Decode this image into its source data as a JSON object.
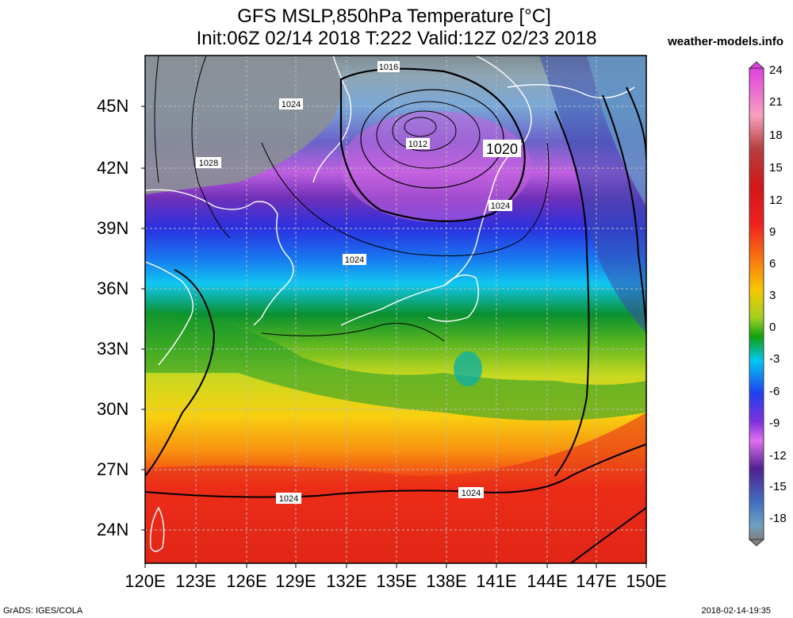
{
  "header": {
    "title_line1": "GFS MSLP,850hPa Temperature [°C]",
    "title_line2": "Init:06Z 02/14 2018 T:222 Valid:12Z 02/23 2018",
    "source": "weather-models.info"
  },
  "map": {
    "lat_labels": [
      "45N",
      "42N",
      "39N",
      "36N",
      "33N",
      "30N",
      "27N",
      "24N"
    ],
    "lon_labels": [
      "120E",
      "123E",
      "126E",
      "129E",
      "132E",
      "135E",
      "138E",
      "141E",
      "144E",
      "147E",
      "150E"
    ],
    "isobar_labels": [
      {
        "text": "1016",
        "key": "a"
      },
      {
        "text": "1024",
        "key": "b"
      },
      {
        "text": "1012",
        "key": "c"
      },
      {
        "text": "1020",
        "key": "d"
      },
      {
        "text": "1028",
        "key": "e"
      },
      {
        "text": "1024",
        "key": "f"
      },
      {
        "text": "1024",
        "key": "g"
      },
      {
        "text": "1024",
        "key": "h"
      },
      {
        "text": "1024",
        "key": "i"
      }
    ]
  },
  "colorbar": {
    "labels": [
      "24",
      "21",
      "18",
      "15",
      "12",
      "9",
      "6",
      "3",
      "0",
      "-3",
      "-6",
      "-9",
      "-12",
      "-15",
      "-18"
    ],
    "colors": {
      "t24": "#e040e0",
      "t18": "#b04040",
      "t15": "#d01818",
      "t12": "#f02020",
      "t9": "#f87010",
      "t6": "#f8c800",
      "t3": "#a0d020",
      "t0": "#10a010",
      "tm3": "#00c8f0",
      "tm6": "#2040f0",
      "tm9": "#e070f0",
      "tm12": "#502090",
      "tm15": "#4070c0",
      "tm18": "#70a0c0",
      "tm20": "#808080"
    }
  },
  "footer": {
    "left": "GrADS: IGES/COLA",
    "right": "2018-02-14-19:35"
  }
}
